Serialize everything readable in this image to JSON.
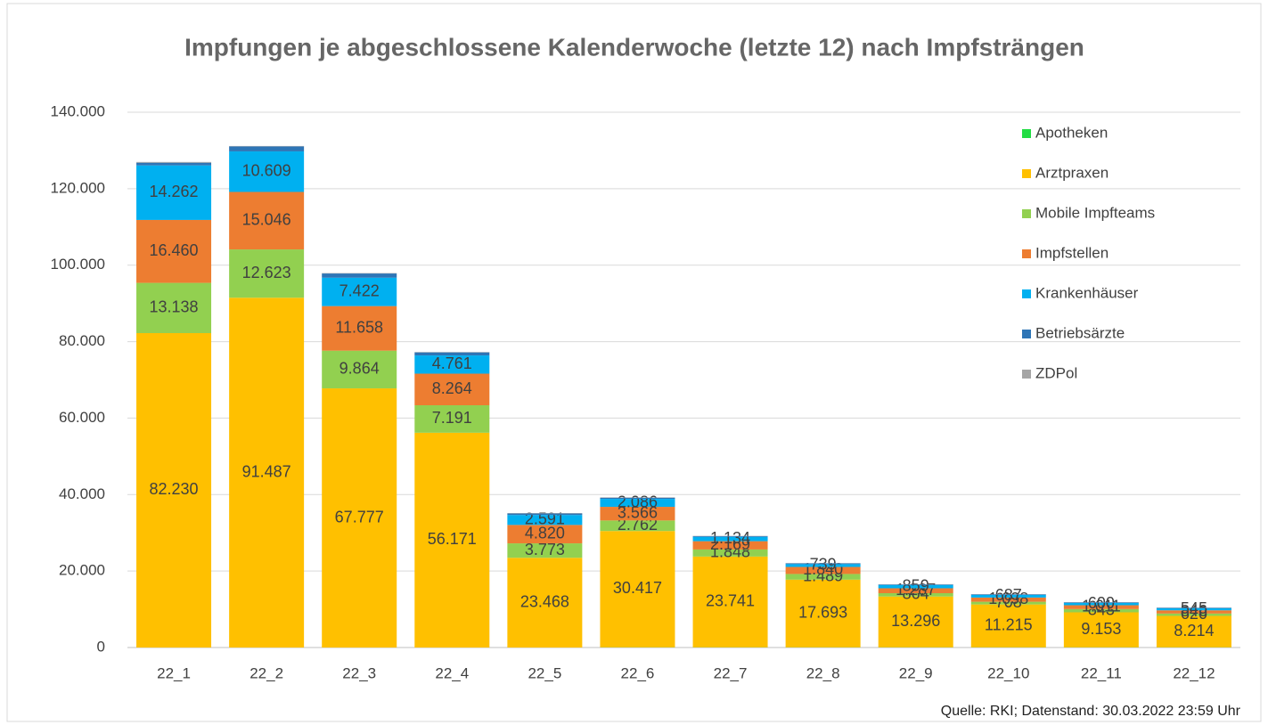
{
  "chart_data": {
    "type": "stacked_bar",
    "title": "Impfungen je abgeschlossene Kalenderwoche (letzte 12) nach Impfsträngen",
    "source": "Quelle: RKI;   Datenstand:   30.03.2022    23:59 Uhr",
    "categories": [
      "22_1",
      "22_2",
      "22_3",
      "22_4",
      "22_5",
      "22_6",
      "22_7",
      "22_8",
      "22_9",
      "22_10",
      "22_11",
      "22_12"
    ],
    "series": [
      {
        "name": "Apotheken",
        "color": "#22dd44",
        "values": [
          0,
          0,
          0,
          0,
          0,
          50,
          50,
          50,
          50,
          50,
          50,
          50
        ]
      },
      {
        "name": "Arztpraxen",
        "color": "#ffc000",
        "values": [
          82230,
          91487,
          67777,
          56171,
          23468,
          30417,
          23741,
          17693,
          13296,
          11215,
          9153,
          8214
        ],
        "value_labels": [
          "82.230",
          "91.487",
          "67.777",
          "56.171",
          "23.468",
          "30.417",
          "23.741",
          "17.693",
          "13.296",
          "11.215",
          "9.153",
          "8.214"
        ]
      },
      {
        "name": "Mobile Impfteams",
        "color": "#92d050",
        "values": [
          13138,
          12623,
          9864,
          7191,
          3773,
          2762,
          1848,
          1489,
          864,
          708,
          843,
          620
        ],
        "value_labels": [
          "13.138",
          "12.623",
          "9.864",
          "7.191",
          "3.773",
          "2.762",
          "1.848",
          "1.489",
          "864",
          "708",
          "843",
          "620"
        ]
      },
      {
        "name": "Impfstellen",
        "color": "#ed7d31",
        "values": [
          16460,
          15046,
          11658,
          8264,
          4820,
          3566,
          2169,
          1840,
          1287,
          1098,
          1011,
          846
        ],
        "value_labels": [
          "16.460",
          "15.046",
          "11.658",
          "8.264",
          "4.820",
          "3.566",
          "2.169",
          "1.840",
          "1.287",
          "1.098",
          "1.011",
          "846"
        ]
      },
      {
        "name": "Krankenhäuser",
        "color": "#00b0f0",
        "values": [
          14262,
          10609,
          7422,
          4761,
          2591,
          2086,
          1134,
          739,
          859,
          687,
          600,
          545
        ],
        "value_labels": [
          "14.262",
          "10.609",
          "7.422",
          "4.761",
          "2.591",
          "2.086",
          "1.134",
          "739",
          "859",
          "687",
          "600",
          "545"
        ]
      },
      {
        "name": "Betriebsärzte",
        "color": "#2e75b6",
        "values": [
          700,
          1300,
          1100,
          800,
          400,
          300,
          200,
          200,
          150,
          150,
          150,
          130
        ]
      },
      {
        "name": "ZDPol",
        "color": "#a5a5a5",
        "values": [
          200,
          100,
          100,
          100,
          100,
          100,
          50,
          50,
          50,
          50,
          50,
          50
        ]
      }
    ],
    "ylim": [
      0,
      140000
    ],
    "yticks": [
      0,
      {
        "value": 20000,
        "label": "20.000"
      },
      {
        "value": 40000,
        "label": "40.000"
      },
      {
        "value": 60000,
        "label": "60.000"
      },
      {
        "value": 80000,
        "label": "80.000"
      },
      {
        "value": 100000,
        "label": "100.000"
      },
      {
        "value": 120000,
        "label": "120.000"
      },
      {
        "value": 140000,
        "label": "140.000"
      }
    ],
    "grid": true,
    "legend": "right"
  }
}
